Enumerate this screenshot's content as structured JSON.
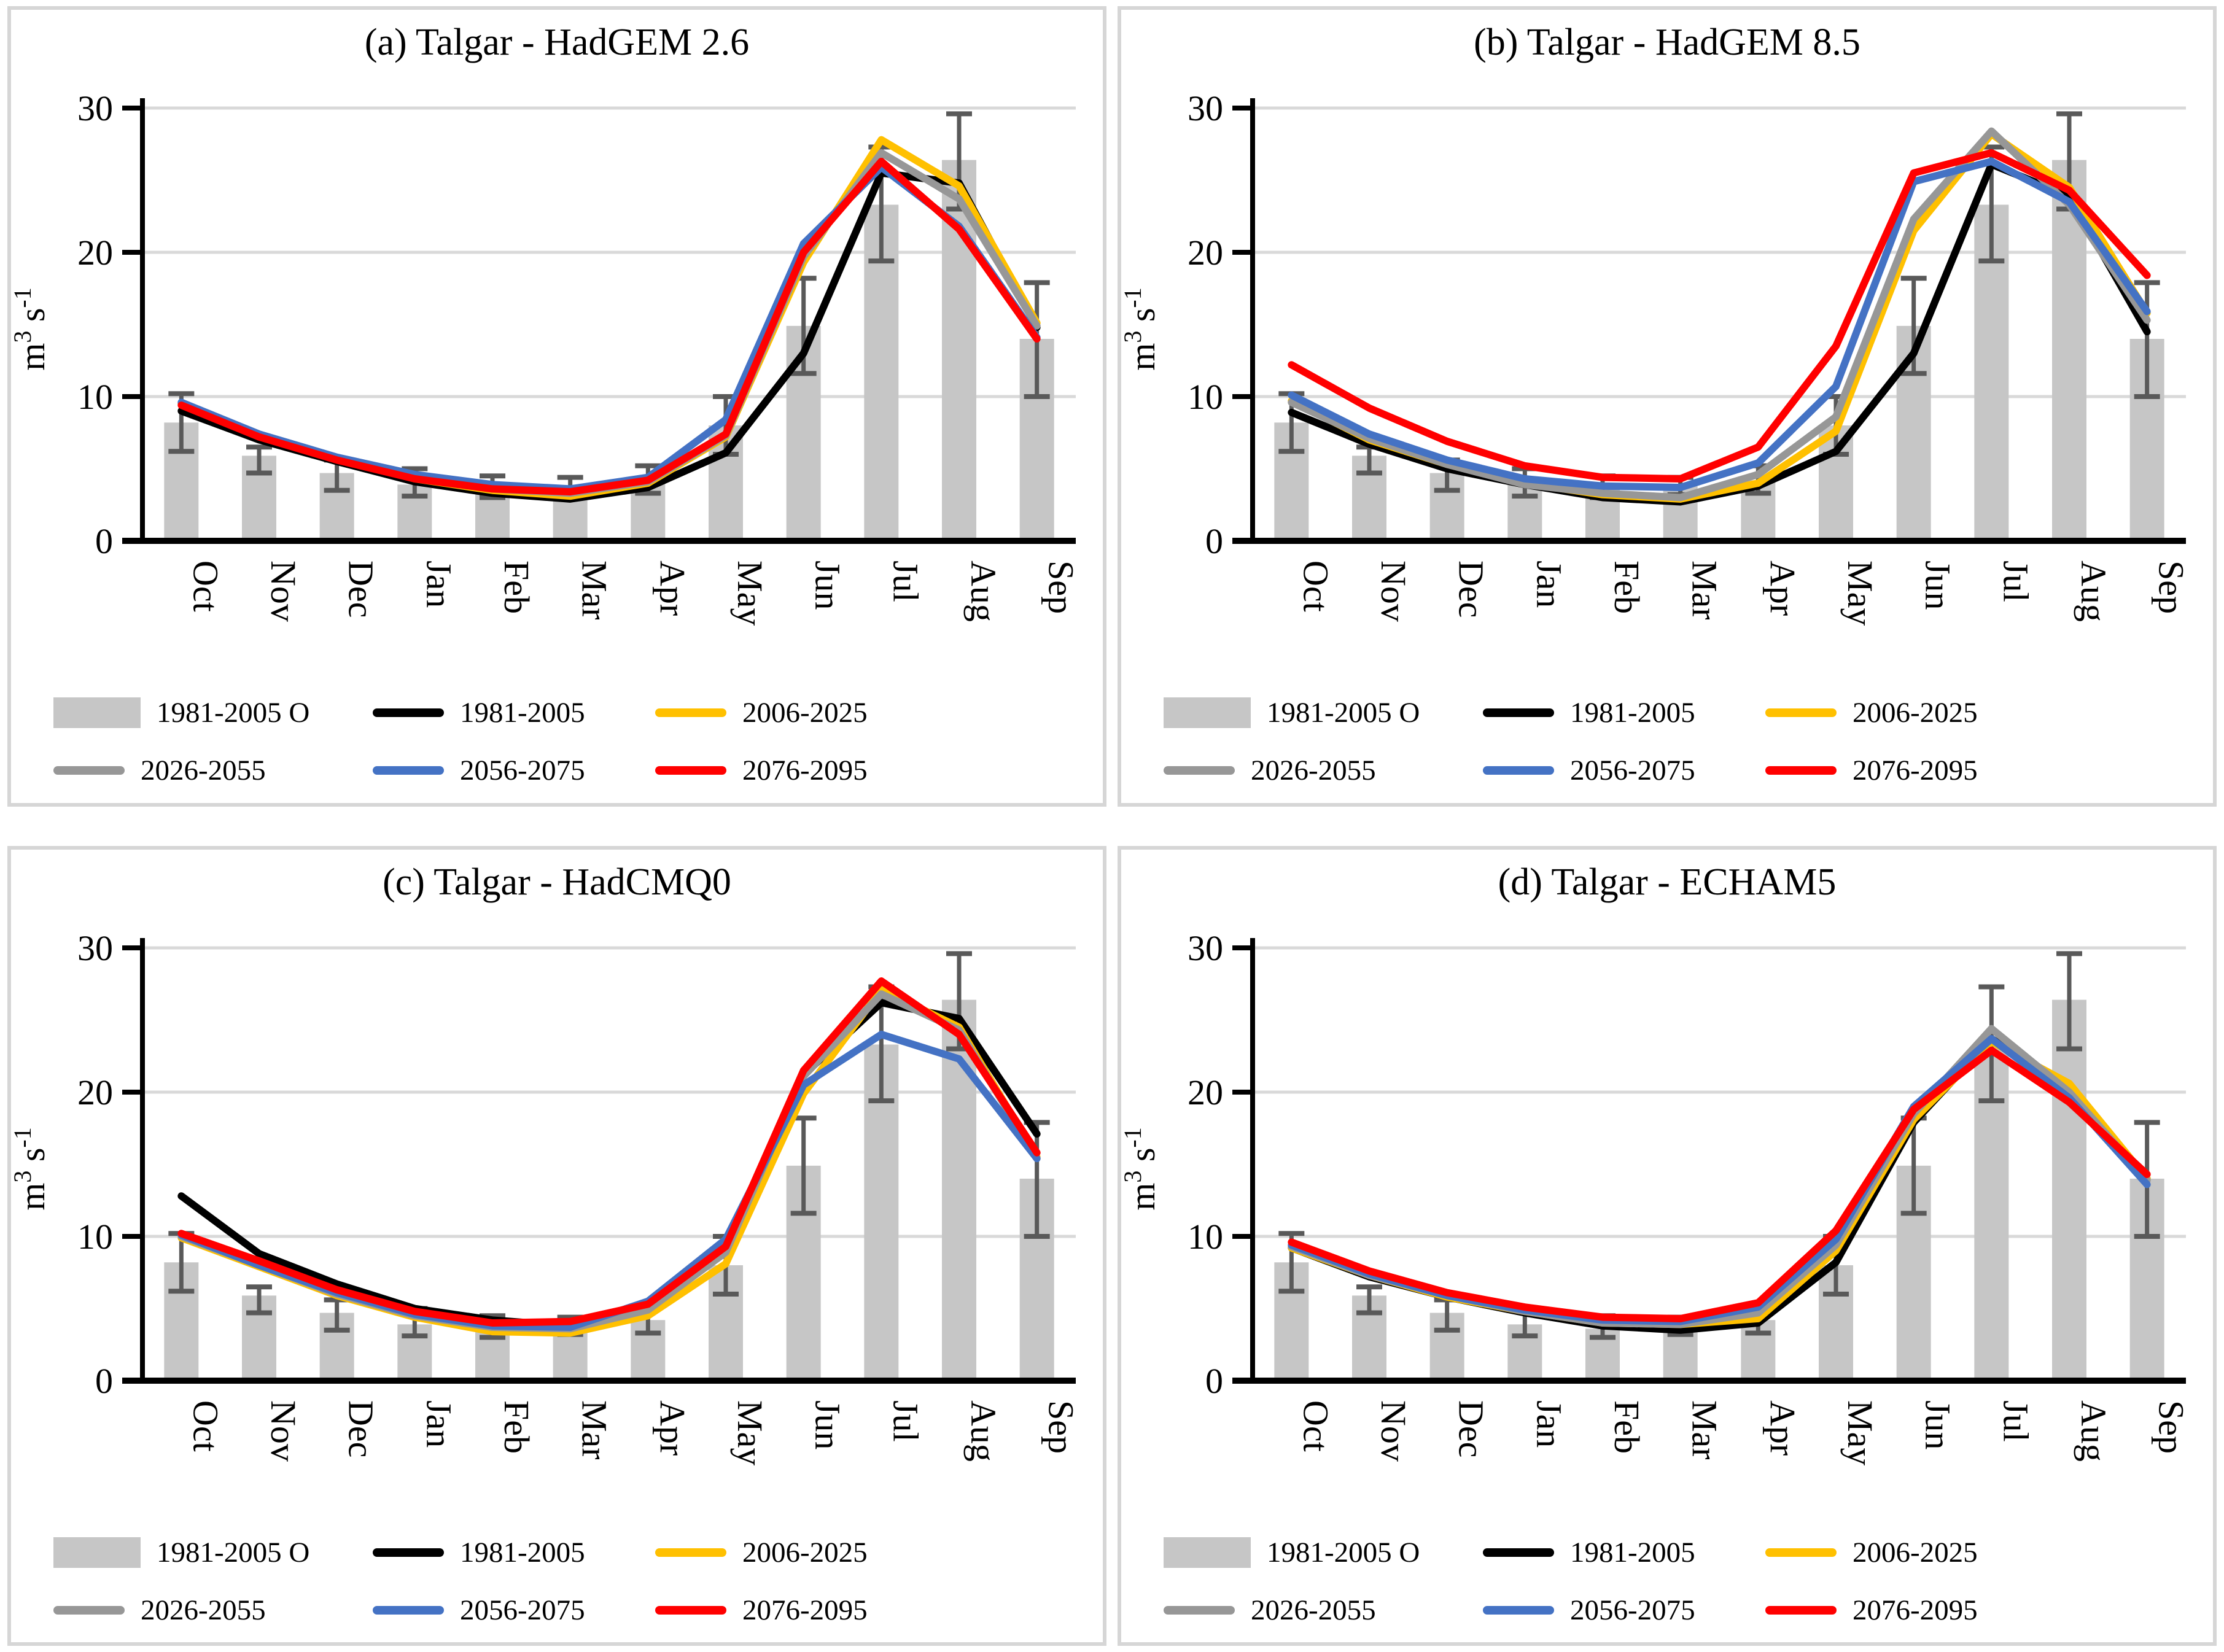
{
  "figure": {
    "type": "2x2 multi-panel bar+line climatology figure",
    "months": [
      "Oct",
      "Nov",
      "Dec",
      "Jan",
      "Feb",
      "Mar",
      "Apr",
      "May",
      "Jun",
      "Jul",
      "Aug",
      "Sep"
    ],
    "ylabel": {
      "base": "m",
      "sup": "3",
      "mid": " s",
      "sup2": "-1"
    },
    "colors": {
      "bar_fill": "#C6C6C6",
      "error_bar": "#595959",
      "gridline": "#D9D9D9",
      "axis": "#000000",
      "panel_border": "#D6D6D6",
      "series_black": "#000000",
      "series_yellow": "#FFC000",
      "series_gray": "#979797",
      "series_blue": "#4472C4",
      "series_red": "#FF0000"
    }
  },
  "chart_data": [
    {
      "type": "bar+line",
      "title": "(a) Talgar - HadGEM 2.6",
      "xlabel": "",
      "ylabel": "m3 s-1",
      "ylim": [
        0,
        30
      ],
      "yticks": [
        0,
        10,
        20,
        30
      ],
      "grid": "horizontal",
      "legend_position": "bottom",
      "categories": [
        "Oct",
        "Nov",
        "Dec",
        "Jan",
        "Feb",
        "Mar",
        "Apr",
        "May",
        "Jun",
        "Jul",
        "Aug",
        "Sep"
      ],
      "bars": {
        "name": "1981-2005 O",
        "color": "#C6C6C6",
        "values": [
          8.2,
          5.9,
          4.7,
          3.9,
          3.6,
          3.8,
          4.2,
          8.0,
          14.9,
          23.3,
          26.4,
          14.0
        ],
        "err_high": [
          10.2,
          6.5,
          5.6,
          5.0,
          4.5,
          4.4,
          5.2,
          10.0,
          18.2,
          27.3,
          29.6,
          17.9
        ],
        "err_low": [
          6.2,
          4.7,
          3.5,
          3.1,
          3.0,
          3.2,
          3.3,
          6.0,
          11.6,
          19.4,
          23.0,
          10.0
        ]
      },
      "series": [
        {
          "name": "1981-2005",
          "color": "#000000",
          "values": [
            9.0,
            7.0,
            5.5,
            4.1,
            3.3,
            2.9,
            3.7,
            6.1,
            13.0,
            25.5,
            24.8,
            14.8
          ]
        },
        {
          "name": "2006-2025",
          "color": "#FFC000",
          "values": [
            9.5,
            7.3,
            5.7,
            4.3,
            3.5,
            3.1,
            4.0,
            7.2,
            19.3,
            27.8,
            24.6,
            15.1
          ]
        },
        {
          "name": "2026-2055",
          "color": "#979797",
          "values": [
            9.5,
            7.3,
            5.7,
            4.4,
            3.6,
            3.3,
            4.1,
            7.3,
            19.7,
            26.9,
            23.7,
            14.9
          ]
        },
        {
          "name": "2056-2075",
          "color": "#4472C4",
          "values": [
            9.6,
            7.4,
            5.8,
            4.6,
            3.9,
            3.6,
            4.4,
            8.4,
            20.6,
            25.9,
            21.8,
            14.1
          ]
        },
        {
          "name": "2076-2095",
          "color": "#FF0000",
          "values": [
            9.4,
            7.2,
            5.6,
            4.3,
            3.6,
            3.4,
            4.2,
            7.4,
            20.0,
            26.3,
            21.6,
            14.0
          ]
        }
      ]
    },
    {
      "type": "bar+line",
      "title": "(b) Talgar - HadGEM 8.5",
      "xlabel": "",
      "ylabel": "m3 s-1",
      "ylim": [
        0,
        30
      ],
      "yticks": [
        0,
        10,
        20,
        30
      ],
      "grid": "horizontal",
      "legend_position": "bottom",
      "categories": [
        "Oct",
        "Nov",
        "Dec",
        "Jan",
        "Feb",
        "Mar",
        "Apr",
        "May",
        "Jun",
        "Jul",
        "Aug",
        "Sep"
      ],
      "bars": {
        "name": "1981-2005 O",
        "color": "#C6C6C6",
        "values": [
          8.2,
          5.9,
          4.7,
          3.9,
          3.6,
          3.8,
          4.2,
          8.0,
          14.9,
          23.3,
          26.4,
          14.0
        ],
        "err_high": [
          10.2,
          6.5,
          5.6,
          5.0,
          4.5,
          4.4,
          5.2,
          10.0,
          18.2,
          27.3,
          29.6,
          17.9
        ],
        "err_low": [
          6.2,
          4.7,
          3.5,
          3.1,
          3.0,
          3.2,
          3.3,
          6.0,
          11.6,
          19.4,
          23.0,
          10.0
        ]
      },
      "series": [
        {
          "name": "1981-2005",
          "color": "#000000",
          "values": [
            8.9,
            6.7,
            5.0,
            3.9,
            3.0,
            2.7,
            3.8,
            6.2,
            13.0,
            26.1,
            23.9,
            14.5
          ]
        },
        {
          "name": "2006-2025",
          "color": "#FFC000",
          "values": [
            9.7,
            7.0,
            5.3,
            4.0,
            3.2,
            2.9,
            4.0,
            7.6,
            21.5,
            28.2,
            24.5,
            15.8
          ]
        },
        {
          "name": "2026-2055",
          "color": "#979797",
          "values": [
            9.6,
            7.1,
            5.3,
            3.9,
            3.3,
            3.0,
            4.6,
            8.6,
            22.3,
            28.4,
            23.3,
            15.3
          ]
        },
        {
          "name": "2056-2075",
          "color": "#4472C4",
          "values": [
            10.1,
            7.4,
            5.6,
            4.3,
            3.8,
            3.7,
            5.4,
            10.7,
            24.9,
            26.3,
            23.5,
            15.9
          ]
        },
        {
          "name": "2076-2095",
          "color": "#FF0000",
          "values": [
            12.2,
            9.2,
            6.9,
            5.2,
            4.4,
            4.3,
            6.5,
            13.5,
            25.5,
            26.9,
            24.3,
            18.4
          ]
        }
      ]
    },
    {
      "type": "bar+line",
      "title": "(c) Talgar - HadCMQ0",
      "xlabel": "",
      "ylabel": "m3 s-1",
      "ylim": [
        0,
        30
      ],
      "yticks": [
        0,
        10,
        20,
        30
      ],
      "grid": "horizontal",
      "legend_position": "bottom",
      "categories": [
        "Oct",
        "Nov",
        "Dec",
        "Jan",
        "Feb",
        "Mar",
        "Apr",
        "May",
        "Jun",
        "Jul",
        "Aug",
        "Sep"
      ],
      "bars": {
        "name": "1981-2005 O",
        "color": "#C6C6C6",
        "values": [
          8.2,
          5.9,
          4.7,
          3.9,
          3.6,
          3.8,
          4.2,
          8.0,
          14.9,
          23.3,
          26.4,
          14.0
        ],
        "err_high": [
          10.2,
          6.5,
          5.6,
          5.0,
          4.5,
          4.4,
          5.2,
          10.0,
          18.2,
          27.3,
          29.6,
          17.9
        ],
        "err_low": [
          6.2,
          4.7,
          3.5,
          3.1,
          3.0,
          3.2,
          3.3,
          6.0,
          11.6,
          19.4,
          23.0,
          10.0
        ]
      },
      "series": [
        {
          "name": "1981-2005",
          "color": "#000000",
          "values": [
            12.8,
            8.8,
            6.7,
            5.0,
            4.2,
            3.8,
            5.0,
            8.9,
            21.2,
            26.2,
            25.1,
            17.1
          ]
        },
        {
          "name": "2006-2025",
          "color": "#FFC000",
          "values": [
            9.9,
            7.9,
            5.9,
            4.4,
            3.4,
            3.3,
            4.5,
            8.1,
            19.9,
            27.1,
            24.5,
            15.5
          ]
        },
        {
          "name": "2026-2055",
          "color": "#979797",
          "values": [
            10.0,
            8.0,
            6.0,
            4.5,
            3.7,
            3.6,
            4.9,
            8.9,
            21.1,
            26.8,
            24.3,
            15.4
          ]
        },
        {
          "name": "2056-2075",
          "color": "#4472C4",
          "values": [
            10.1,
            8.0,
            6.1,
            4.6,
            3.8,
            3.7,
            5.5,
            9.8,
            20.5,
            24.0,
            22.3,
            15.4
          ]
        },
        {
          "name": "2076-2095",
          "color": "#FF0000",
          "values": [
            10.2,
            8.3,
            6.3,
            4.8,
            4.0,
            4.1,
            5.3,
            9.3,
            21.5,
            27.7,
            24.0,
            15.8
          ]
        }
      ]
    },
    {
      "type": "bar+line",
      "title": "(d) Talgar - ECHAM5",
      "xlabel": "",
      "ylabel": "m3 s-1",
      "ylim": [
        0,
        30
      ],
      "yticks": [
        0,
        10,
        20,
        30
      ],
      "grid": "horizontal",
      "legend_position": "bottom",
      "categories": [
        "Oct",
        "Nov",
        "Dec",
        "Jan",
        "Feb",
        "Mar",
        "Apr",
        "May",
        "Jun",
        "Jul",
        "Aug",
        "Sep"
      ],
      "bars": {
        "name": "1981-2005 O",
        "color": "#C6C6C6",
        "values": [
          8.2,
          5.9,
          4.7,
          3.9,
          3.6,
          3.8,
          4.2,
          8.0,
          14.9,
          23.3,
          26.4,
          14.0
        ],
        "err_high": [
          10.2,
          6.5,
          5.6,
          5.0,
          4.5,
          4.4,
          5.2,
          10.0,
          18.2,
          27.3,
          29.6,
          17.9
        ],
        "err_low": [
          6.2,
          4.7,
          3.5,
          3.1,
          3.0,
          3.2,
          3.3,
          6.0,
          11.6,
          19.4,
          23.0,
          10.0
        ]
      },
      "series": [
        {
          "name": "1981-2005",
          "color": "#000000",
          "values": [
            9.2,
            7.2,
            5.8,
            4.7,
            3.8,
            3.5,
            4.0,
            8.2,
            17.9,
            23.7,
            20.3,
            14.0
          ]
        },
        {
          "name": "2006-2025",
          "color": "#FFC000",
          "values": [
            9.2,
            7.3,
            5.8,
            4.8,
            4.0,
            3.9,
            4.3,
            9.0,
            18.1,
            23.5,
            20.6,
            14.0
          ]
        },
        {
          "name": "2026-2055",
          "color": "#979797",
          "values": [
            9.3,
            7.3,
            5.9,
            4.8,
            4.0,
            3.9,
            4.7,
            9.4,
            18.5,
            24.4,
            20.0,
            13.9
          ]
        },
        {
          "name": "2056-2075",
          "color": "#4472C4",
          "values": [
            9.4,
            7.4,
            5.9,
            4.9,
            4.2,
            4.1,
            5.1,
            9.8,
            19.0,
            23.7,
            19.6,
            13.6
          ]
        },
        {
          "name": "2076-2095",
          "color": "#FF0000",
          "values": [
            9.6,
            7.6,
            6.1,
            5.1,
            4.4,
            4.3,
            5.4,
            10.4,
            18.8,
            22.9,
            19.3,
            14.3
          ]
        }
      ]
    }
  ]
}
